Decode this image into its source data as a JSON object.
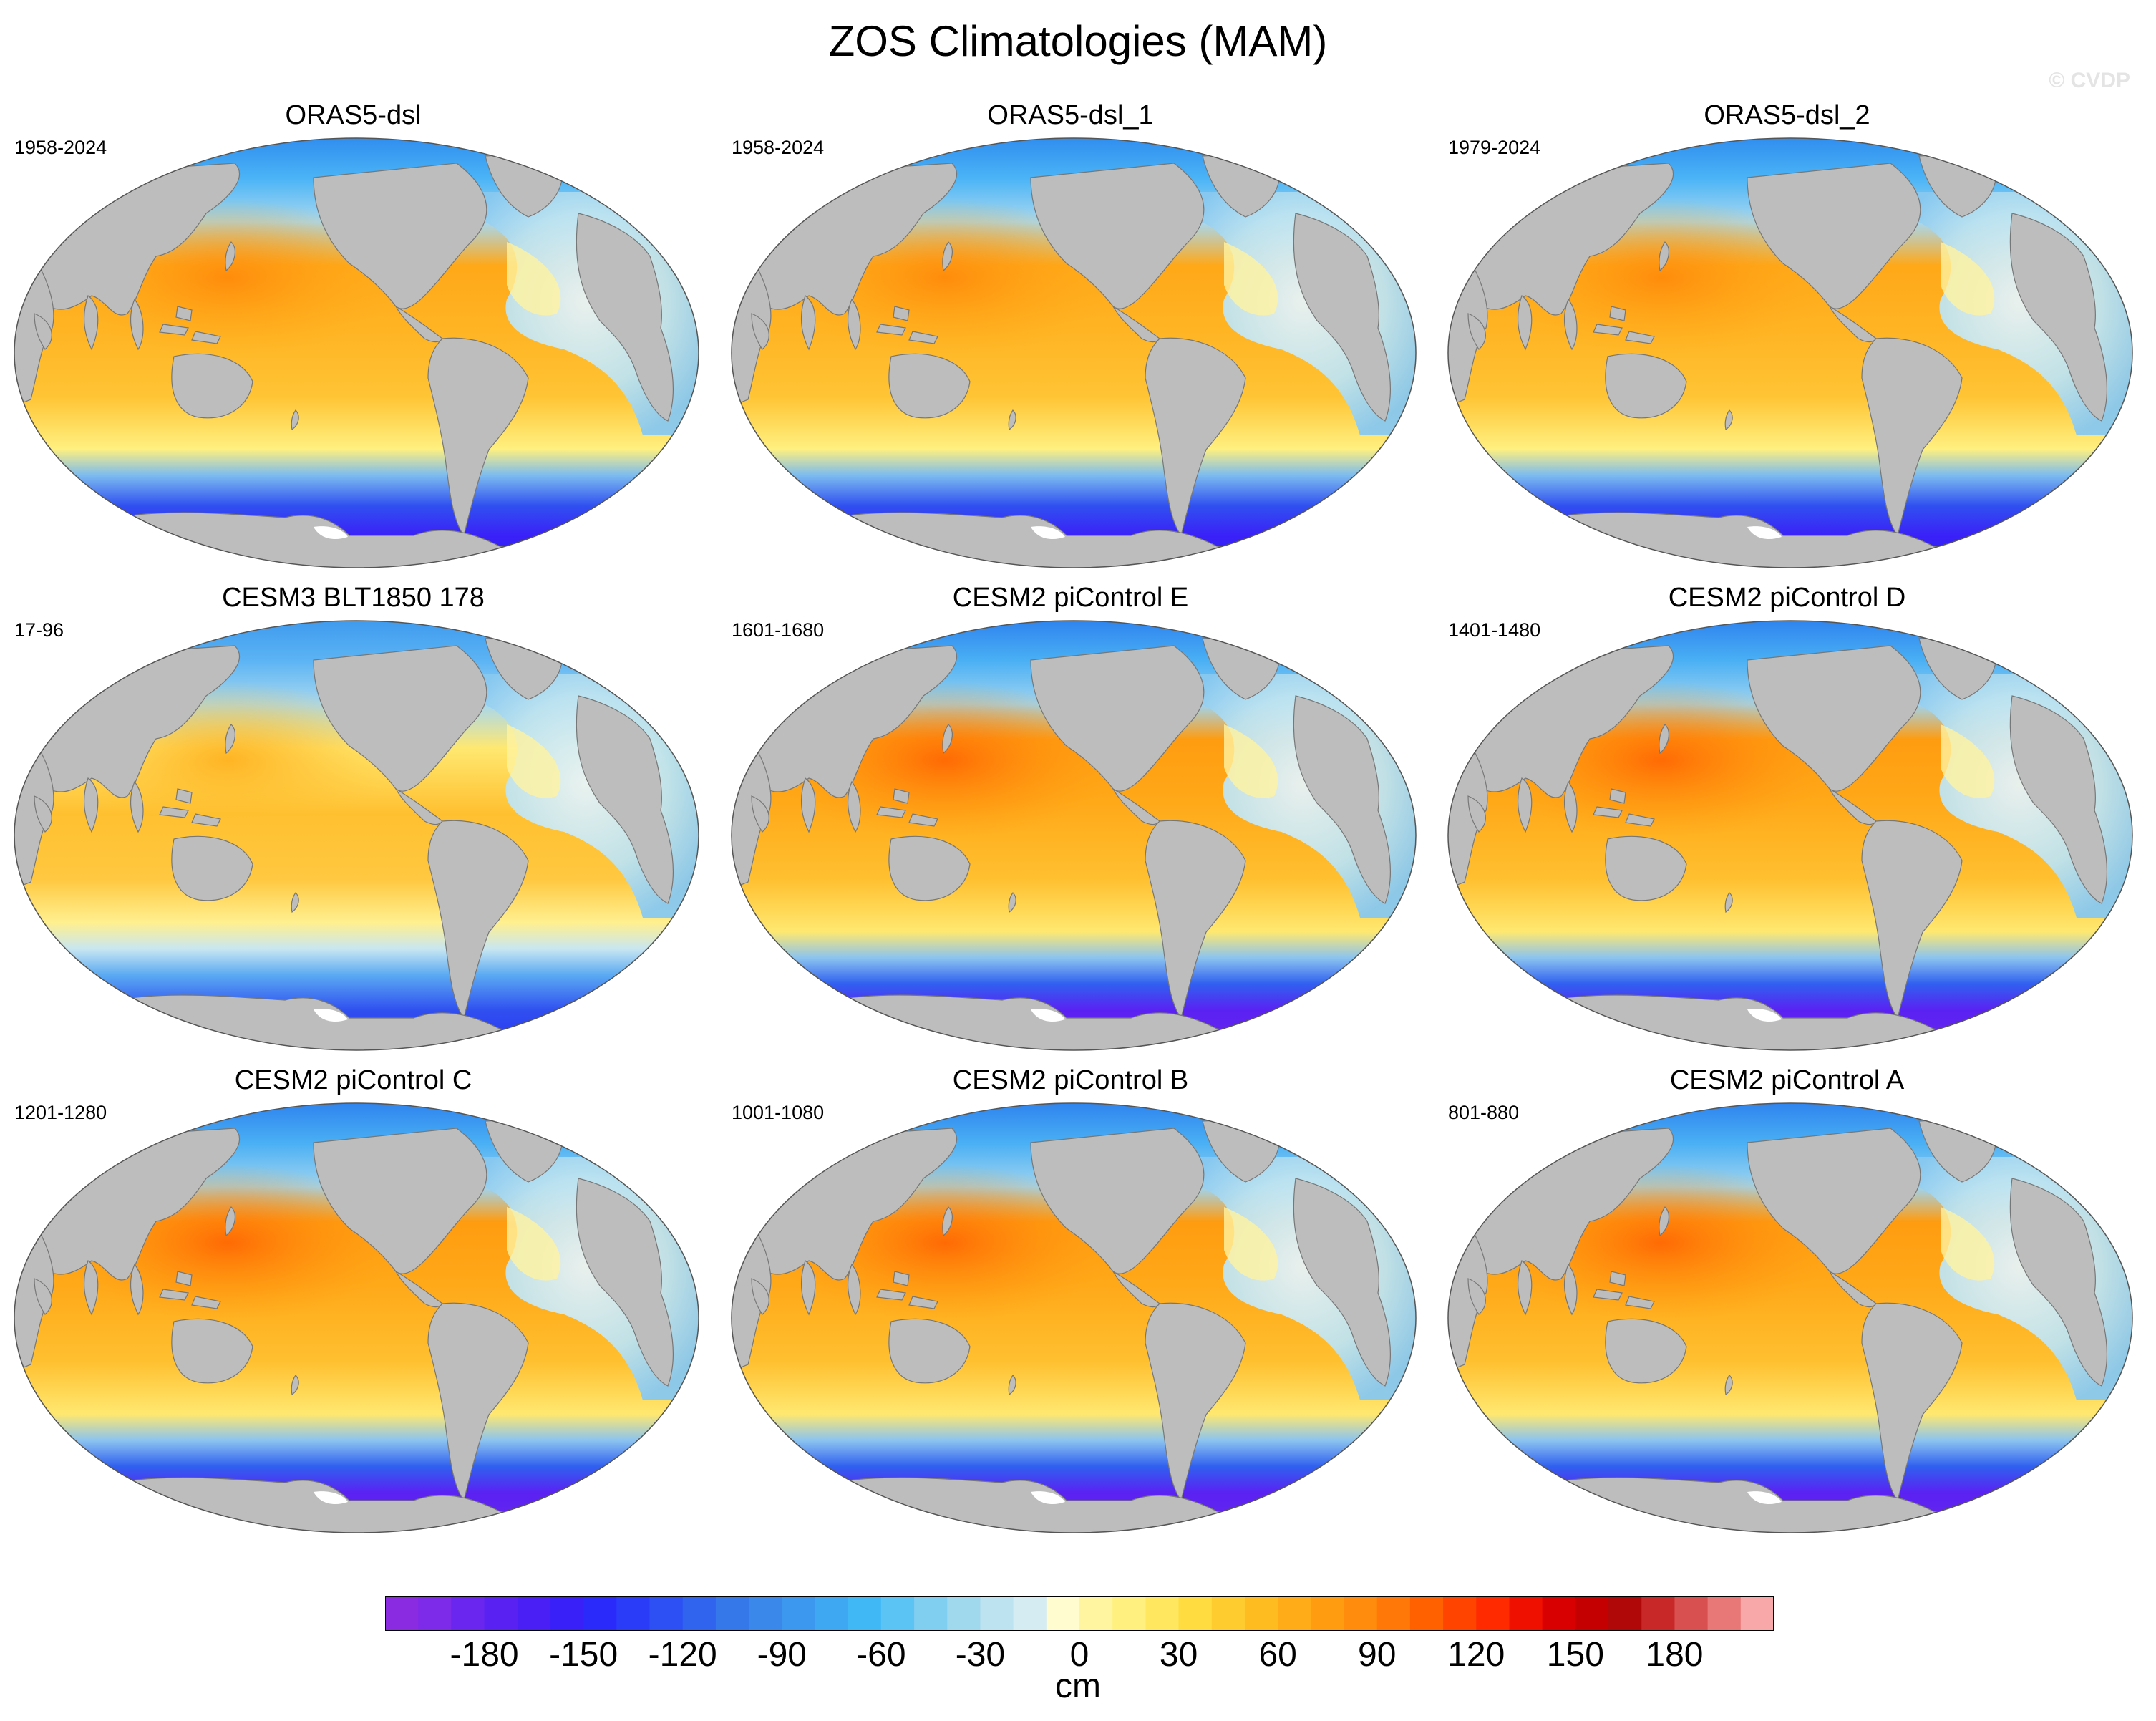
{
  "figure": {
    "title": "ZOS Climatologies (MAM)",
    "watermark": "© CVDP"
  },
  "colors": {
    "land": "#bdbdbd",
    "coast": "#777777",
    "ocean_frame": "#888888"
  },
  "panels": [
    {
      "title": "ORAS5-dsl",
      "years": "1958-2024",
      "variant": "reanalysis"
    },
    {
      "title": "ORAS5-dsl_1",
      "years": "1958-2024",
      "variant": "reanalysis"
    },
    {
      "title": "ORAS5-dsl_2",
      "years": "1979-2024",
      "variant": "reanalysis"
    },
    {
      "title": "CESM3 BLT1850 178",
      "years": "17-96",
      "variant": "cesm3"
    },
    {
      "title": "CESM2 piControl E",
      "years": "1601-1680",
      "variant": "cesm2"
    },
    {
      "title": "CESM2 piControl D",
      "years": "1401-1480",
      "variant": "cesm2"
    },
    {
      "title": "CESM2 piControl C",
      "years": "1201-1280",
      "variant": "cesm2"
    },
    {
      "title": "CESM2 piControl B",
      "years": "1001-1080",
      "variant": "cesm2"
    },
    {
      "title": "CESM2 piControl A",
      "years": "801-880",
      "variant": "cesm2"
    }
  ],
  "colorbar": {
    "unit": "cm",
    "min": -200,
    "max": 200,
    "step": 10,
    "tick_labels": [
      "-180",
      "-150",
      "-120",
      "-90",
      "-60",
      "-30",
      "0",
      "30",
      "60",
      "90",
      "120",
      "150",
      "180"
    ],
    "tick_values": [
      -180,
      -150,
      -120,
      -90,
      -60,
      -30,
      0,
      30,
      60,
      90,
      120,
      150,
      180
    ],
    "colors": [
      "#8a2be2",
      "#7d2be8",
      "#6a25ee",
      "#5a22f2",
      "#4a1ff5",
      "#3a20f8",
      "#2a2afa",
      "#2a3cf8",
      "#2c50f4",
      "#3064ee",
      "#3478ea",
      "#3a88ea",
      "#3c98ee",
      "#3ea8f2",
      "#40b8f6",
      "#5cc4f4",
      "#80cef0",
      "#a0d8ee",
      "#bde3f0",
      "#d4ecf2",
      "#fffdd0",
      "#fff5a0",
      "#fff080",
      "#ffe860",
      "#ffdc40",
      "#ffcc30",
      "#ffbc20",
      "#ffac18",
      "#ff9c10",
      "#ff8c0c",
      "#ff7808",
      "#ff6000",
      "#ff4400",
      "#ff2a00",
      "#f01000",
      "#d80000",
      "#c40000",
      "#b00808",
      "#c82828",
      "#d85050",
      "#e87878",
      "#f8a8a8"
    ]
  }
}
